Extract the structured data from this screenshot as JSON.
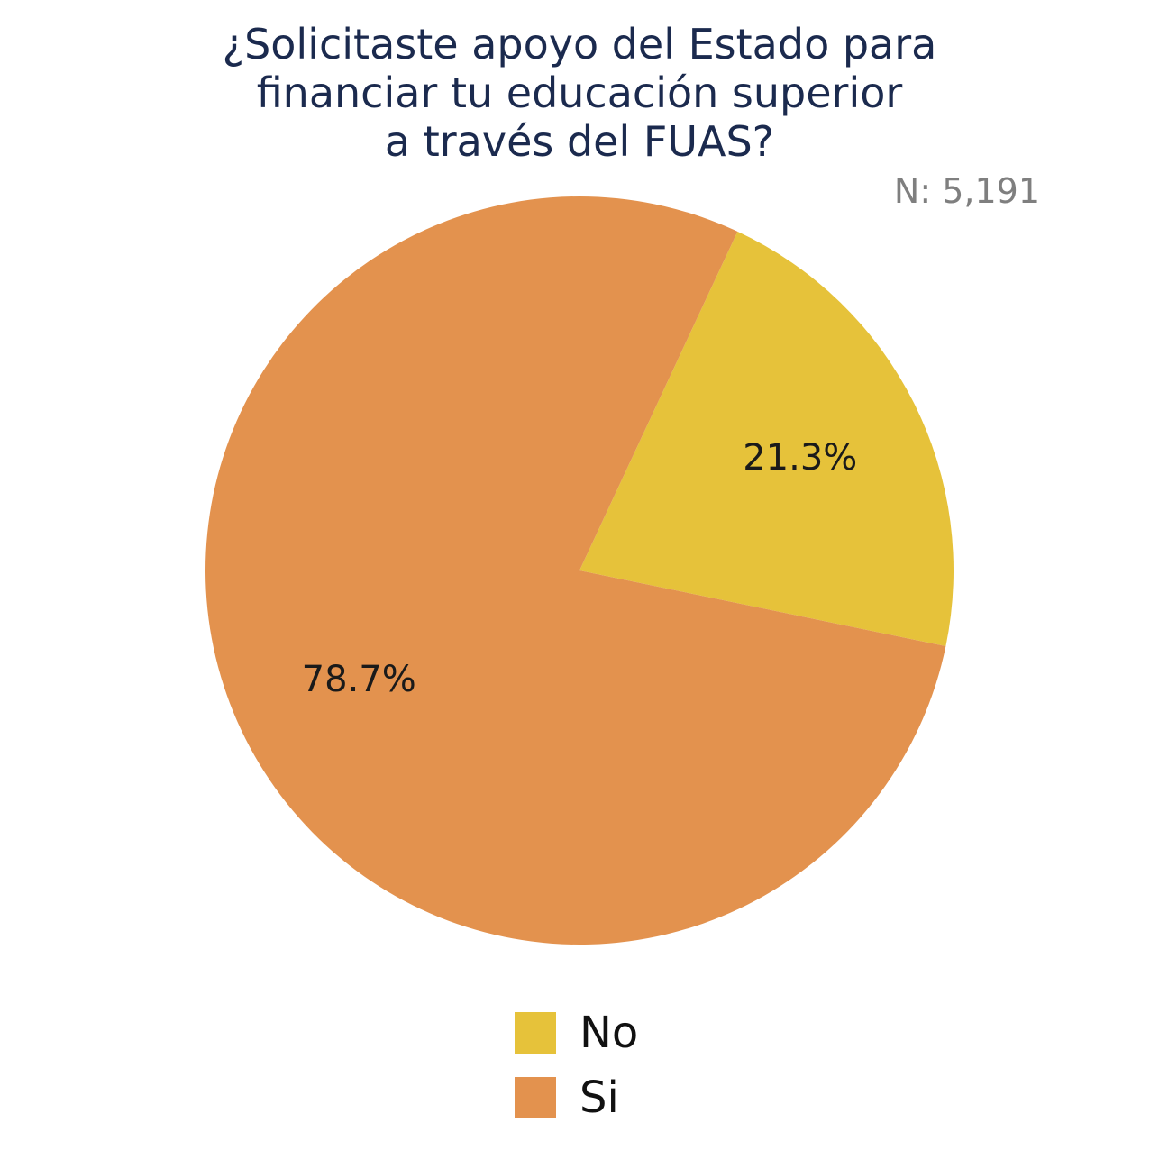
{
  "chart_data": {
    "type": "pie",
    "title_lines": [
      "¿Solicitaste apoyo del Estado para",
      "financiar tu educación superior",
      "a través del FUAS?"
    ],
    "sample_size": "N: 5,191",
    "categories": [
      "No",
      "Si"
    ],
    "values": [
      21.3,
      78.7
    ],
    "value_labels": [
      "21.3%",
      "78.7%"
    ],
    "colors": [
      "#e6c23a",
      "#e3924e"
    ],
    "start_angle_deg": 25,
    "direction": "clockwise",
    "legend_position": "bottom"
  }
}
